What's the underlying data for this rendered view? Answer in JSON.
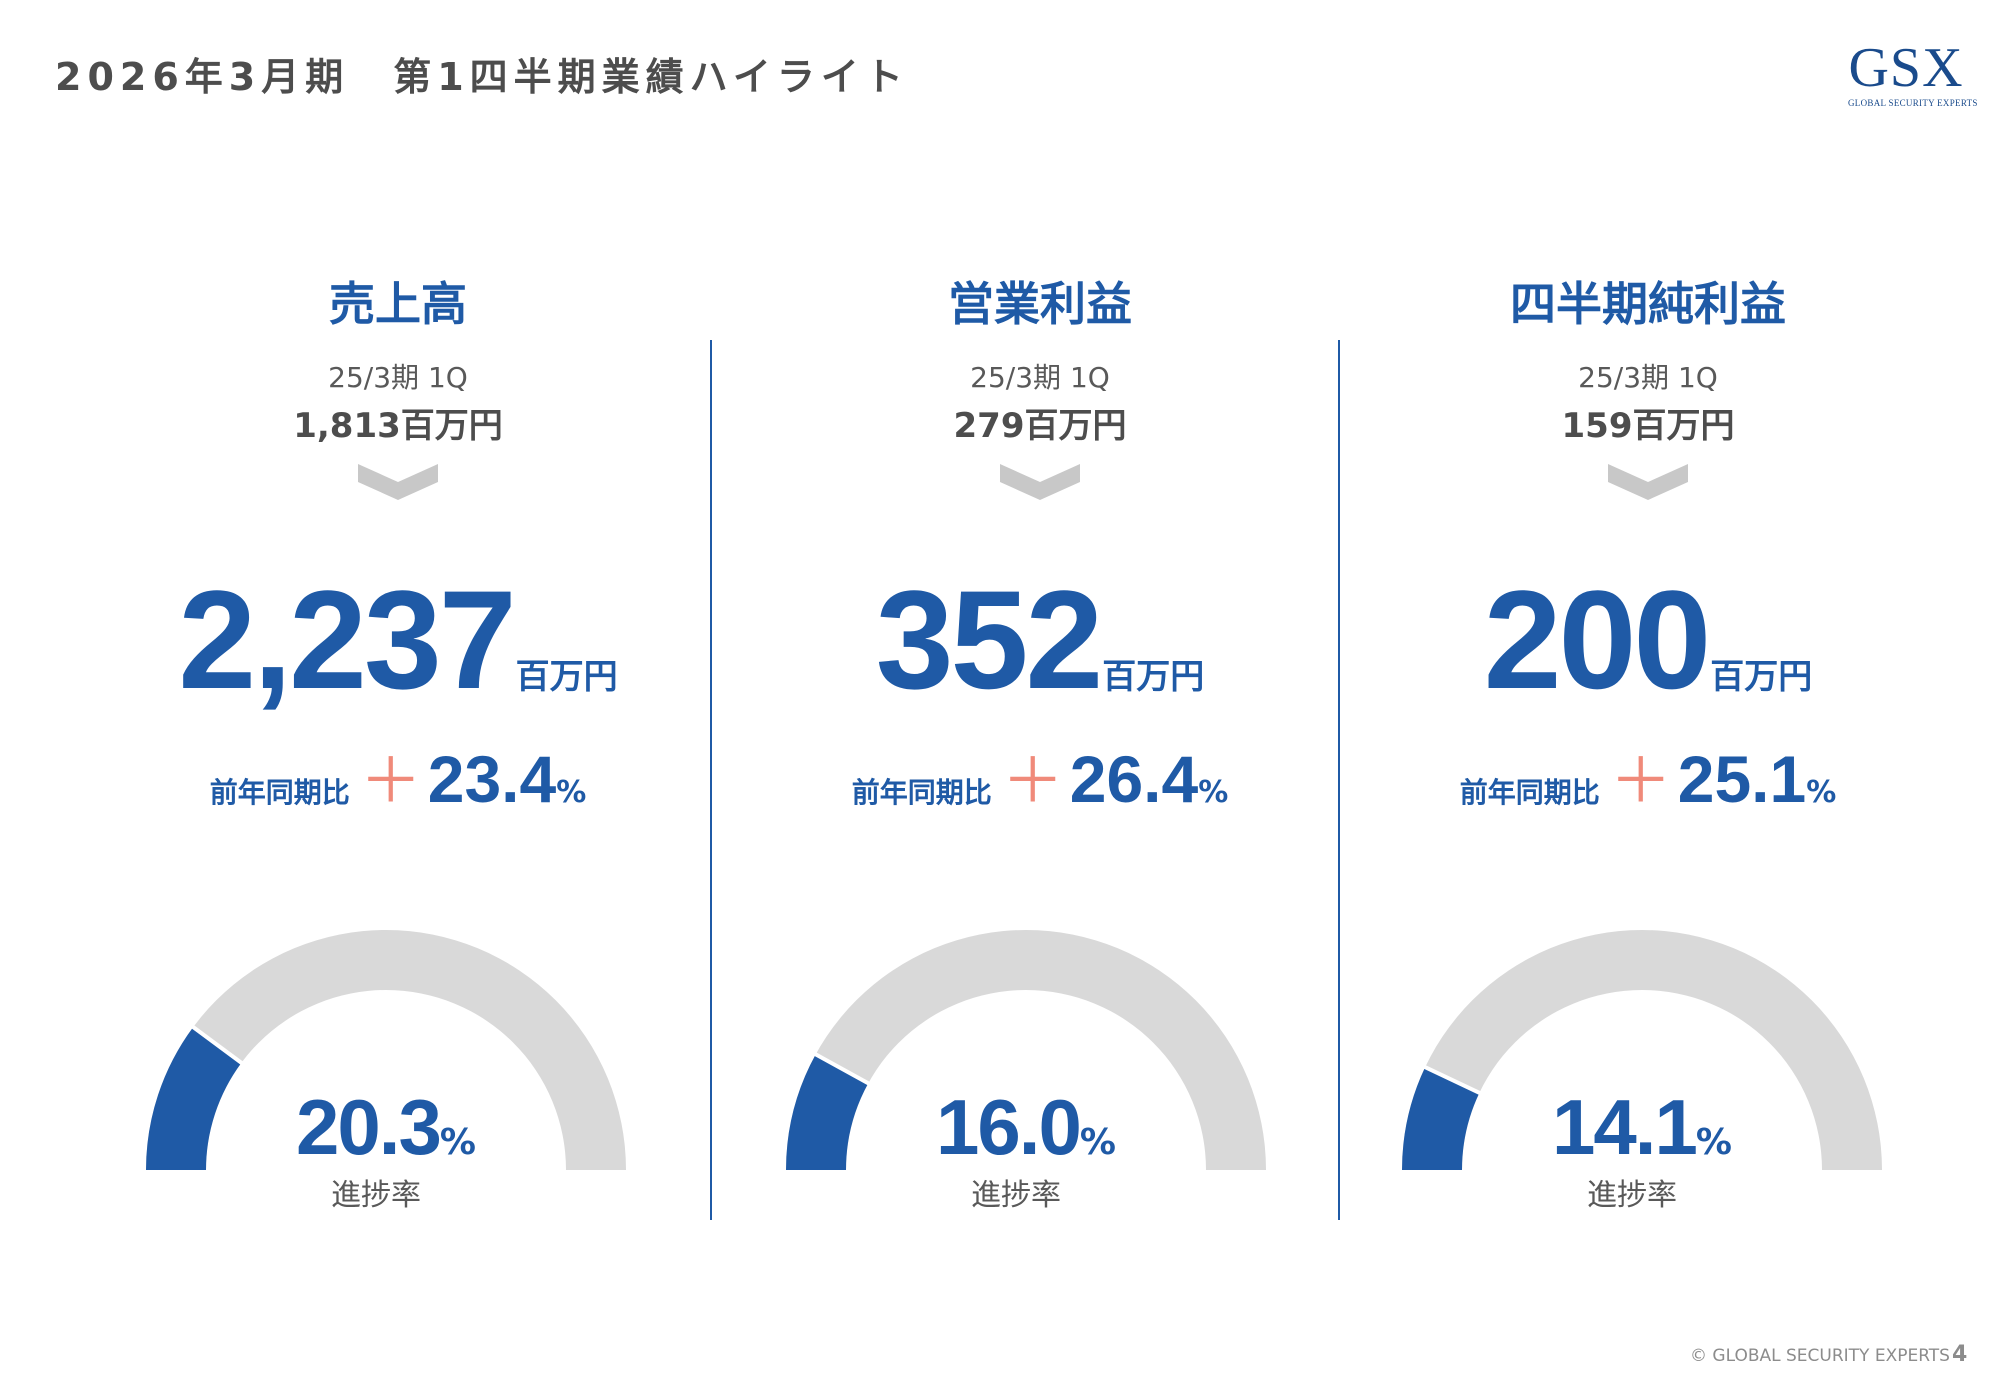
{
  "header": {
    "title": "2026年3月期　第1四半期業績ハイライト",
    "logo_mark": "GSX",
    "logo_sub": "GLOBAL SECURITY EXPERTS"
  },
  "colors": {
    "primary": "#1f5aa6",
    "accent_plus": "#f08a7a",
    "gauge_track": "#d9d9d9",
    "chevron": "#c8c8c8"
  },
  "metrics": [
    {
      "name": "売上高",
      "prev_period": "25/3期 1Q",
      "prev_value": "1,813百万円",
      "value": "2,237",
      "unit": "百万円",
      "yoy_label": "前年同期比",
      "yoy_sign": "＋",
      "yoy_value": "23.4",
      "yoy_pct": "%",
      "progress_value": "20.3",
      "progress_pct": "%",
      "progress_label": "進捗率",
      "progress_fraction": 0.203
    },
    {
      "name": "営業利益",
      "prev_period": "25/3期 1Q",
      "prev_value": "279百万円",
      "value": "352",
      "unit": "百万円",
      "yoy_label": "前年同期比",
      "yoy_sign": "＋",
      "yoy_value": "26.4",
      "yoy_pct": "%",
      "progress_value": "16.0",
      "progress_pct": "%",
      "progress_label": "進捗率",
      "progress_fraction": 0.16
    },
    {
      "name": "四半期純利益",
      "prev_period": "25/3期 1Q",
      "prev_value": "159百万円",
      "value": "200",
      "unit": "百万円",
      "yoy_label": "前年同期比",
      "yoy_sign": "＋",
      "yoy_value": "25.1",
      "yoy_pct": "%",
      "progress_value": "14.1",
      "progress_pct": "%",
      "progress_label": "進捗率",
      "progress_fraction": 0.141
    }
  ],
  "footer": {
    "copyright": "© GLOBAL SECURITY EXPERTS",
    "page_number": "4"
  }
}
